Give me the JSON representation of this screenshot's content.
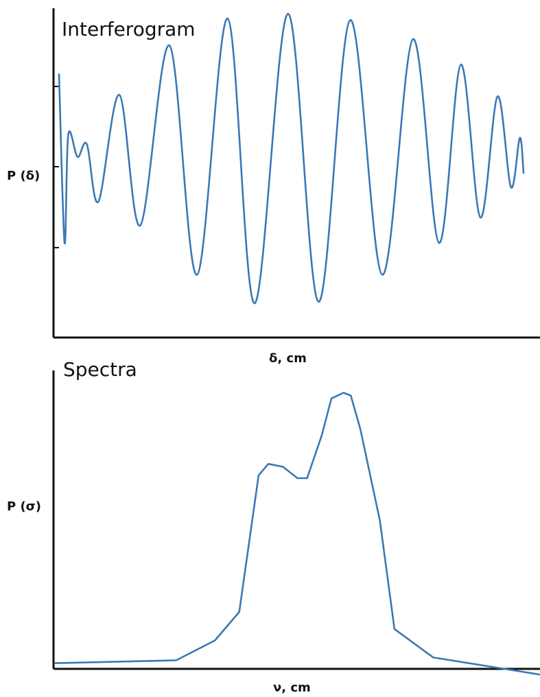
{
  "chart_data": [
    {
      "type": "line",
      "title": "Interferogram",
      "xlabel": "δ, cm",
      "ylabel": "P (δ)",
      "grid": false,
      "xlim": [
        0,
        100
      ],
      "ylim": [
        -1.0,
        1.0
      ],
      "series": [
        {
          "color": "#3a78b4",
          "curve": "damped-cosine-interferogram",
          "points": [
            [
              0,
              0.62
            ],
            [
              1.2,
              -0.44
            ],
            [
              2.0,
              0.24
            ],
            [
              4.0,
              0.1
            ],
            [
              6.0,
              0.18
            ],
            [
              8.5,
              -0.18
            ],
            [
              13.0,
              0.49
            ],
            [
              17.5,
              -0.33
            ],
            [
              23.8,
              0.8
            ],
            [
              29.7,
              -0.64
            ],
            [
              36.3,
              0.97
            ],
            [
              42.1,
              -0.82
            ],
            [
              49.3,
              1.0
            ],
            [
              55.9,
              -0.81
            ],
            [
              62.7,
              0.96
            ],
            [
              69.6,
              -0.64
            ],
            [
              76.2,
              0.84
            ],
            [
              81.8,
              -0.44
            ],
            [
              86.5,
              0.68
            ],
            [
              90.7,
              -0.28
            ],
            [
              94.4,
              0.48
            ],
            [
              97.3,
              -0.09
            ],
            [
              99.2,
              0.22
            ],
            [
              100,
              0.0
            ]
          ]
        }
      ]
    },
    {
      "type": "line",
      "title": "Spectra",
      "xlabel": "ν, cm",
      "ylabel": "P (σ)",
      "grid": false,
      "xlim": [
        0,
        100
      ],
      "ylim": [
        0,
        1.0
      ],
      "series": [
        {
          "color": "#3a78b4",
          "points": [
            [
              0,
              0.02
            ],
            [
              25,
              0.03
            ],
            [
              33,
              0.1
            ],
            [
              38,
              0.2
            ],
            [
              42,
              0.68
            ],
            [
              44,
              0.72
            ],
            [
              47,
              0.71
            ],
            [
              50,
              0.67
            ],
            [
              52,
              0.67
            ],
            [
              55,
              0.82
            ],
            [
              57,
              0.95
            ],
            [
              59.5,
              0.97
            ],
            [
              61,
              0.96
            ],
            [
              63,
              0.84
            ],
            [
              67,
              0.52
            ],
            [
              70,
              0.14
            ],
            [
              78,
              0.04
            ],
            [
              100,
              -0.02
            ]
          ]
        }
      ]
    }
  ]
}
